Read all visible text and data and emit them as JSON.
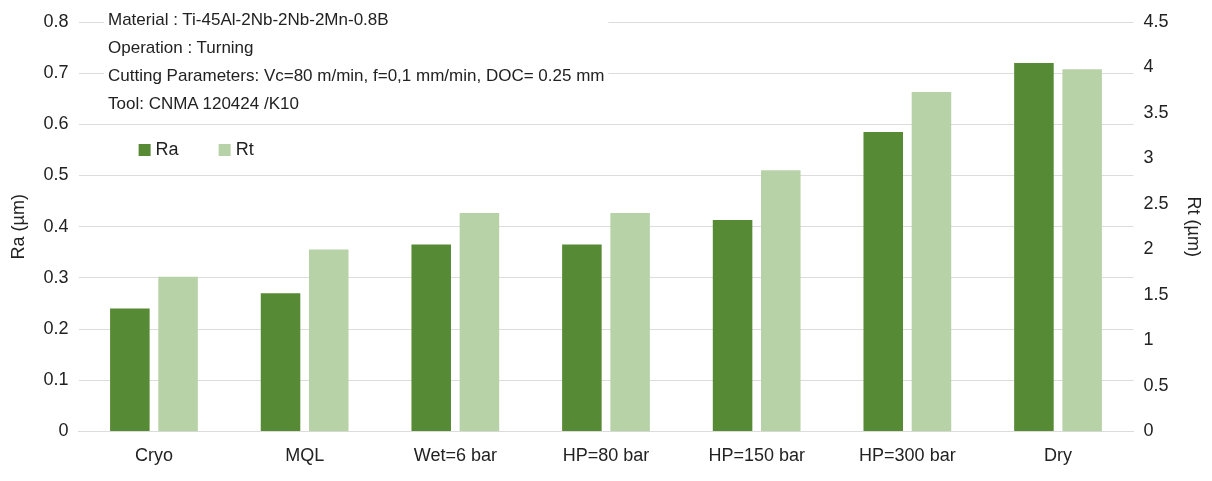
{
  "chart_data": {
    "type": "bar",
    "ylabel": "Ra (µm)",
    "y2label": "Rt (µm)",
    "categories": [
      "Cryo",
      "MQL",
      "Wet=6 bar",
      "HP=80 bar",
      "HP=150 bar",
      "HP=300 bar",
      "Dry"
    ],
    "series": [
      {
        "name": "Ra",
        "color": "#578a35",
        "values": [
          0.24,
          0.27,
          0.365,
          0.365,
          0.413,
          0.585,
          0.72
        ]
      },
      {
        "name": "Rt",
        "color": "#b8d2a8",
        "axis": "y2",
        "values": [
          1.7,
          2.0,
          2.4,
          2.4,
          2.87,
          3.73,
          3.98
        ]
      }
    ],
    "ylim": [
      0,
      0.8
    ],
    "yticks": [
      0,
      0.1,
      0.2,
      0.3,
      0.4,
      0.5,
      0.6,
      0.7,
      0.8
    ],
    "y2lim": [
      0,
      4.5
    ],
    "y2ticks": [
      0,
      0.5,
      1,
      1.5,
      2,
      2.5,
      3,
      3.5,
      4,
      4.5
    ],
    "grid": "y",
    "legend": "top left",
    "annotations": [
      "Material : Ti-45Al-2Nb-2Nb-2Mn-0.8B",
      "Operation : Turning",
      "Cutting Parameters: Vc=80 m/min, f=0,1 mm/min, DOC= 0.25 mm",
      "Tool: CNMA 120424 /K10"
    ]
  }
}
